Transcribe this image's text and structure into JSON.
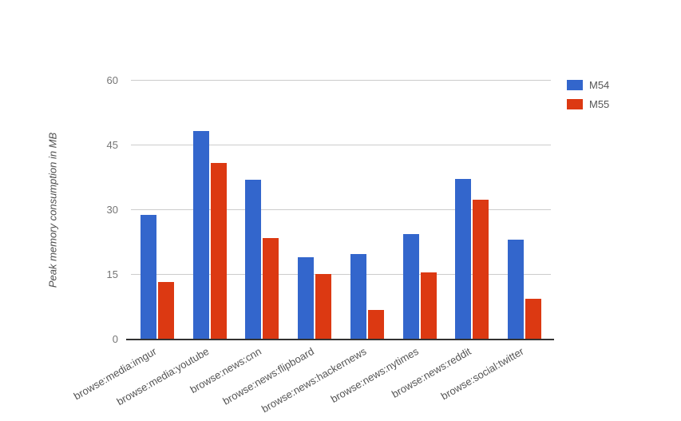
{
  "chart_data": {
    "type": "bar",
    "title": "",
    "xlabel": "",
    "ylabel": "Peak memory consumption in MB",
    "ylim": [
      0,
      60
    ],
    "yticks": [
      0,
      15,
      30,
      45,
      60
    ],
    "grid": true,
    "legend_position": "top-right",
    "categories": [
      "browse:media:imgur",
      "browse:media:youtube",
      "browse:news:cnn",
      "browse:news:flipboard",
      "browse:news:hackernews",
      "browse:news:nytimes",
      "browse:news:reddit",
      "browse:social:twitter"
    ],
    "series": [
      {
        "name": "M54",
        "color": "#3366cc",
        "values": [
          28.8,
          48.3,
          37.0,
          19.0,
          19.8,
          24.5,
          37.2,
          23.2
        ]
      },
      {
        "name": "M55",
        "color": "#dc3912",
        "values": [
          13.4,
          41.0,
          23.5,
          15.2,
          6.8,
          15.6,
          32.4,
          9.4
        ]
      }
    ]
  },
  "colors": {
    "background": "#ffffff",
    "gridline": "#cccccc",
    "axis_baseline": "#333333",
    "tick_text": "#757575",
    "label_text": "#555555"
  }
}
